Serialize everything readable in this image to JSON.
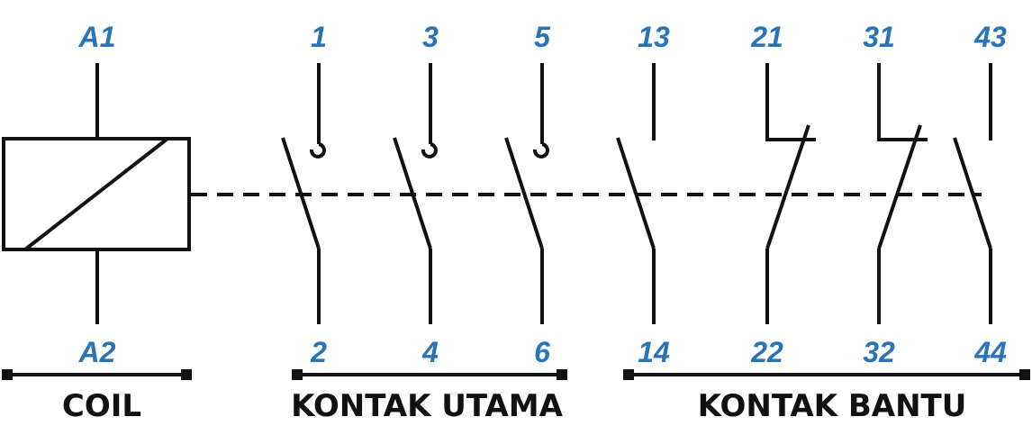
{
  "colors": {
    "terminal_text": "#2a73b6",
    "line": "#111111",
    "label": "#111111",
    "background": "#ffffff"
  },
  "coil": {
    "top_terminal": "A1",
    "bottom_terminal": "A2"
  },
  "main_contacts": [
    {
      "top": "1",
      "bottom": "2"
    },
    {
      "top": "3",
      "bottom": "4"
    },
    {
      "top": "5",
      "bottom": "6"
    }
  ],
  "auxiliary_contacts": [
    {
      "top": "13",
      "bottom": "14",
      "type": "normally-open"
    },
    {
      "top": "21",
      "bottom": "22",
      "type": "normally-closed"
    },
    {
      "top": "31",
      "bottom": "32",
      "type": "normally-closed"
    },
    {
      "top": "43",
      "bottom": "44",
      "type": "normally-open"
    }
  ],
  "groups": {
    "coil_label": "COIL",
    "main_label": "KONTAK UTAMA",
    "aux_label": "KONTAK BANTU"
  }
}
